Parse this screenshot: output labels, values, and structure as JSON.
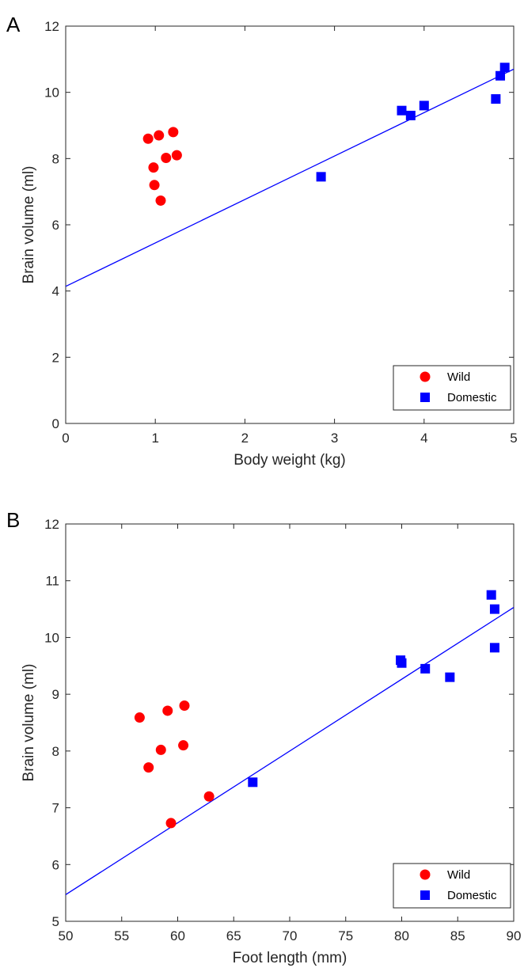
{
  "chart_data": [
    {
      "type": "scatter",
      "panel_label": "A",
      "xlabel": "Body weight (kg)",
      "ylabel": "Brain volume (ml)",
      "xlim": [
        0,
        5
      ],
      "ylim": [
        0,
        12
      ],
      "xticks": [
        0,
        1,
        2,
        3,
        4,
        5
      ],
      "yticks": [
        0,
        2,
        4,
        6,
        8,
        10,
        12
      ],
      "grid": false,
      "legend_position": "bottom-right",
      "series": [
        {
          "name": "Wild",
          "marker": "circle",
          "color": "#ff0000",
          "points": [
            [
              0.92,
              8.6
            ],
            [
              1.04,
              8.7
            ],
            [
              1.2,
              8.8
            ],
            [
              0.98,
              7.73
            ],
            [
              1.12,
              8.02
            ],
            [
              1.24,
              8.1
            ],
            [
              0.99,
              7.2
            ],
            [
              1.06,
              6.73
            ]
          ]
        },
        {
          "name": "Domestic",
          "marker": "square",
          "color": "#0000ff",
          "points": [
            [
              2.85,
              7.45
            ],
            [
              3.75,
              9.45
            ],
            [
              3.85,
              9.3
            ],
            [
              4.0,
              9.6
            ],
            [
              4.8,
              9.8
            ],
            [
              4.85,
              10.5
            ],
            [
              4.9,
              10.75
            ]
          ]
        }
      ],
      "fit_line": {
        "color": "#0000ff",
        "x": [
          0,
          5
        ],
        "y": [
          4.14,
          10.7
        ]
      }
    },
    {
      "type": "scatter",
      "panel_label": "B",
      "xlabel": "Foot length (mm)",
      "ylabel": "Brain volume (ml)",
      "xlim": [
        50,
        90
      ],
      "ylim": [
        5,
        12
      ],
      "xticks": [
        50,
        55,
        60,
        65,
        70,
        75,
        80,
        85,
        90
      ],
      "yticks": [
        5,
        6,
        7,
        8,
        9,
        10,
        11,
        12
      ],
      "grid": false,
      "legend_position": "bottom-right",
      "series": [
        {
          "name": "Wild",
          "marker": "circle",
          "color": "#ff0000",
          "points": [
            [
              56.6,
              8.59
            ],
            [
              57.4,
              7.71
            ],
            [
              58.5,
              8.02
            ],
            [
              59.1,
              8.71
            ],
            [
              60.6,
              8.8
            ],
            [
              60.5,
              8.1
            ],
            [
              62.8,
              7.2
            ],
            [
              59.4,
              6.73
            ]
          ]
        },
        {
          "name": "Domestic",
          "marker": "square",
          "color": "#0000ff",
          "points": [
            [
              66.7,
              7.45
            ],
            [
              79.9,
              9.6
            ],
            [
              80.0,
              9.55
            ],
            [
              82.1,
              9.45
            ],
            [
              84.3,
              9.3
            ],
            [
              88.0,
              10.75
            ],
            [
              88.3,
              10.5
            ],
            [
              88.3,
              9.82
            ]
          ]
        }
      ],
      "fit_line": {
        "color": "#0000ff",
        "x": [
          50,
          90
        ],
        "y": [
          5.47,
          10.53
        ]
      }
    }
  ]
}
